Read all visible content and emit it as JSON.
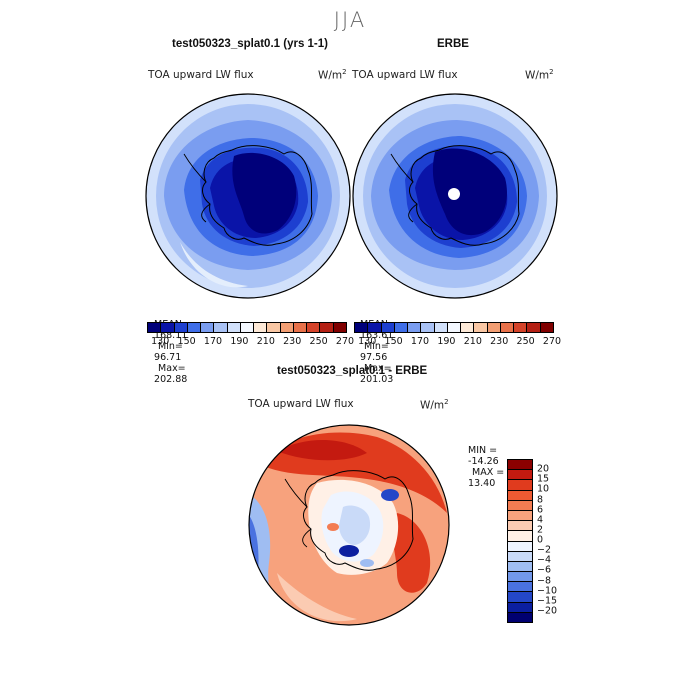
{
  "season": "JJA",
  "panels": [
    {
      "title": "test050323_splat0.1 (yrs 1-1)",
      "variable": "TOA upward LW flux",
      "units_base": "W/m",
      "units_exp": "2",
      "mean_label": "MEAN=",
      "mean": "168.11",
      "min_label": "Min=",
      "min": "96.71",
      "max_label": "Max=",
      "max": "202.88"
    },
    {
      "title": "ERBE",
      "variable": "TOA upward LW flux",
      "units_base": "W/m",
      "units_exp": "2",
      "mean_label": "MEAN=",
      "mean": "163.61",
      "min_label": "Min=",
      "min": "97.56",
      "max_label": "Max=",
      "max": "201.03"
    }
  ],
  "abs_colorbar": {
    "labels": [
      "130",
      "150",
      "170",
      "190",
      "210",
      "230",
      "250",
      "270"
    ],
    "colors": [
      "#00007a",
      "#0a14a8",
      "#1d3fd0",
      "#3f6ee8",
      "#7a9df0",
      "#a9c2f5",
      "#d2e1fb",
      "#f4f8ff",
      "#fde9d7",
      "#f9c7a4",
      "#f29e73",
      "#e8714a",
      "#d4432a",
      "#b42014",
      "#800000"
    ]
  },
  "diff_panel": {
    "title": "test050323_splat0.1 - ERBE",
    "variable": "TOA upward LW flux",
    "units_base": "W/m",
    "units_exp": "2",
    "min_label": "MIN =",
    "min": "-14.26",
    "max_label": "MAX =",
    "max": "13.40"
  },
  "diff_colorbar": {
    "labels": [
      "20",
      "15",
      "10",
      "8",
      "6",
      "4",
      "2",
      "0",
      "−2",
      "−4",
      "−6",
      "−8",
      "−10",
      "−15",
      "−20"
    ],
    "colors": [
      "#8b0000",
      "#c41a10",
      "#e03b1e",
      "#ee5a32",
      "#f37c52",
      "#f7a27d",
      "#fbcbb2",
      "#fff0e6",
      "#eef4ff",
      "#c9daf8",
      "#9fbdf2",
      "#7298ea",
      "#4a72e0",
      "#2447c8",
      "#0b1fa0",
      "#000070"
    ]
  },
  "legend_colors": {
    "background": "#ffffff",
    "coast": "#000000",
    "pole_hole": "#ffffff"
  }
}
